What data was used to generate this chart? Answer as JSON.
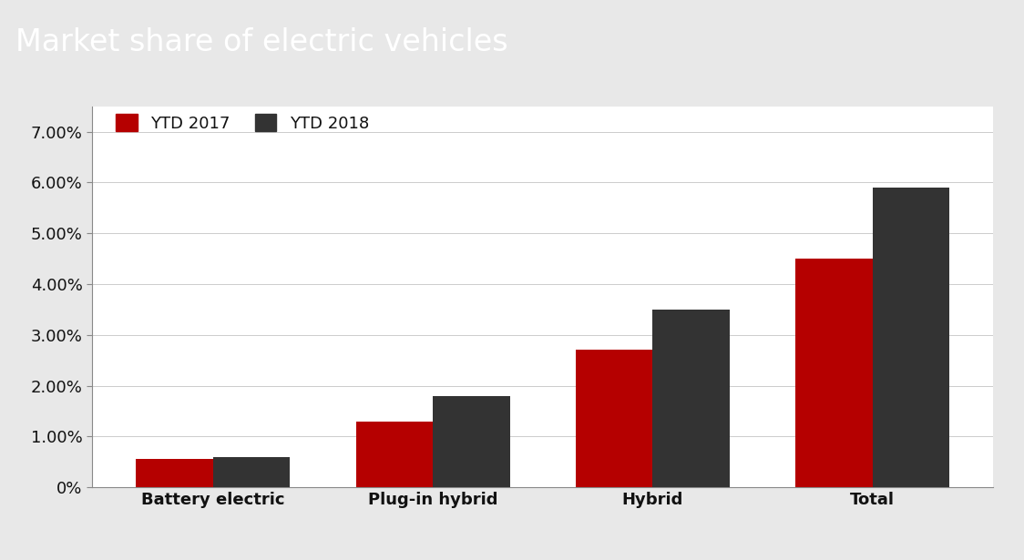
{
  "title": "Market share of electric vehicles",
  "categories": [
    "Battery electric",
    "Plug-in hybrid",
    "Hybrid",
    "Total"
  ],
  "ytd2017": [
    0.0055,
    0.013,
    0.027,
    0.045
  ],
  "ytd2018": [
    0.006,
    0.018,
    0.035,
    0.059
  ],
  "color_2017": "#b50000",
  "color_2018": "#333333",
  "title_bg_color": "#333333",
  "title_text_color": "#ffffff",
  "outer_bg_color": "#e8e8e8",
  "inner_bg_color": "#ffffff",
  "legend_labels": [
    "YTD 2017",
    "YTD 2018"
  ],
  "ylim": [
    0,
    0.075
  ],
  "yticks": [
    0.0,
    0.01,
    0.02,
    0.03,
    0.04,
    0.05,
    0.06,
    0.07
  ],
  "ytick_labels": [
    "0%",
    "1.00%",
    "2.00%",
    "3.00%",
    "4.00%",
    "5.00%",
    "6.00%",
    "7.00%"
  ],
  "bar_width": 0.35,
  "title_fontsize": 24,
  "axis_label_fontsize": 13,
  "legend_fontsize": 13,
  "tick_fontsize": 13
}
